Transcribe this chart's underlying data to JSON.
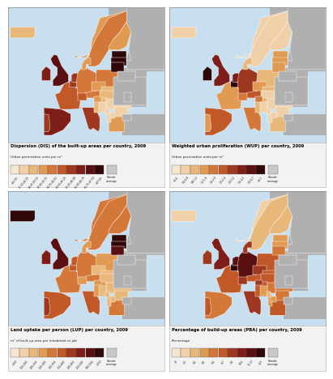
{
  "bg_color": "#ffffff",
  "map_bg": "#c8dff0",
  "land_gray": "#aaaaaa",
  "sea_color": "#c8dff0",
  "outer_bg": "#9ab8cc",
  "panels": [
    {
      "title": "Dispersion (DIS) of the built-up areas per country, 2009",
      "subtitle": "Urban permeation units per m²",
      "legend_labels": [
        "<41.50",
        "41.50-42.25",
        "42.25-43.00",
        "43.00-43.75",
        "43.75-44.50",
        "44.50-45.25",
        "45.25-46.00",
        "46.00-46.75",
        "46.75-47.50",
        ">47.50",
        "Outside\ncoverage"
      ],
      "colors": [
        "#f5e6d0",
        "#f0d0a8",
        "#e8b87a",
        "#e09a52",
        "#d4783a",
        "#c05828",
        "#9e3820",
        "#7d1e18",
        "#5a0f10",
        "#300808",
        "#c8c8c8"
      ],
      "country_colors": {
        "iceland": 2,
        "norway": 3,
        "sweden": 4,
        "finland": 3,
        "uk": 8,
        "ireland": 7,
        "france": 5,
        "spain": 7,
        "portugal": 6,
        "belgium": 6,
        "netherlands": 6,
        "luxembourg": 5,
        "germany": 4,
        "denmark": 3,
        "austria": 4,
        "switzerland": 5,
        "italy": 6,
        "greece": 3,
        "poland": 4,
        "czech": 3,
        "slovakia": 2,
        "hungary": 2,
        "romania": 1,
        "bulgaria": 1,
        "estonia": 9,
        "latvia": 9,
        "lithuania": 9,
        "croatia": 2,
        "slovenia": 3,
        "serbia": 1,
        "albania": 1,
        "northmacedonia": 1,
        "bosniaherzegovina": 1,
        "montenegro": 1,
        "turkey_eu": -1,
        "russia_west": -1,
        "ukraine": -1,
        "belarus": -1,
        "moldova": -1,
        "cyprus": 3,
        "malta": 6
      }
    },
    {
      "title": "Weighted urban proliferation (WUP) per country, 2009",
      "subtitle": "Urban permeation units per m²",
      "legend_labels": [
        "<0.4",
        "0.4-0.8",
        "0.8-1.2",
        "1.2-1.6",
        "1.6-2.0",
        "2.0-2.4",
        "2.4-3.2",
        "3.2-4.3",
        "4.3-6.7",
        ">6.7",
        "Outside\ncoverage"
      ],
      "colors": [
        "#f5e6d0",
        "#f0d0a8",
        "#e8b87a",
        "#e09a52",
        "#d4783a",
        "#c05828",
        "#9e3820",
        "#7d1e18",
        "#5a0f10",
        "#300808",
        "#c8c8c8"
      ],
      "country_colors": {
        "iceland": 1,
        "norway": 1,
        "sweden": 1,
        "finland": 1,
        "uk": 7,
        "ireland": 9,
        "france": 3,
        "spain": 5,
        "portugal": 3,
        "belgium": 9,
        "netherlands": 7,
        "luxembourg": 6,
        "germany": 6,
        "denmark": 2,
        "austria": 5,
        "switzerland": 4,
        "italy": 4,
        "greece": 2,
        "poland": 2,
        "czech": 3,
        "slovakia": 2,
        "hungary": 1,
        "romania": 1,
        "bulgaria": 1,
        "estonia": 3,
        "latvia": 3,
        "lithuania": 3,
        "croatia": 2,
        "slovenia": 4,
        "serbia": 1,
        "albania": 1,
        "northmacedonia": 1,
        "bosniaherzegovina": 1,
        "montenegro": 1,
        "turkey_eu": -1,
        "russia_west": -1,
        "ukraine": -1,
        "belarus": -1,
        "moldova": -1,
        "cyprus": 2,
        "malta": 5
      }
    },
    {
      "title": "Land uptake per person (LUP) per country, 2009",
      "subtitle": "m² of built-up area per inhabitant or job",
      "legend_labels": [
        "<150",
        "150-200",
        "200-250",
        "250-300",
        "300-350",
        "350-400",
        "400-450",
        "450-500",
        "500-550",
        ">550",
        "Outside\ncoverage"
      ],
      "colors": [
        "#f5e6d0",
        "#f0d0a8",
        "#e8b87a",
        "#e09a52",
        "#d4783a",
        "#c05828",
        "#9e3820",
        "#7d1e18",
        "#5a0f10",
        "#300808",
        "#c8c8c8"
      ],
      "country_colors": {
        "iceland": 9,
        "norway": 4,
        "sweden": 4,
        "finland": 4,
        "uk": 8,
        "ireland": 7,
        "france": 4,
        "spain": 5,
        "portugal": 6,
        "belgium": 5,
        "netherlands": 5,
        "luxembourg": 4,
        "germany": 4,
        "denmark": 3,
        "austria": 4,
        "switzerland": 3,
        "italy": 5,
        "greece": 4,
        "poland": 3,
        "czech": 2,
        "slovakia": 2,
        "hungary": 2,
        "romania": 2,
        "bulgaria": 2,
        "estonia": 9,
        "latvia": 9,
        "lithuania": 8,
        "croatia": 3,
        "slovenia": 3,
        "serbia": 2,
        "albania": 2,
        "northmacedonia": 2,
        "bosniaherzegovina": 2,
        "montenegro": 2,
        "turkey_eu": -1,
        "russia_west": -1,
        "ukraine": -1,
        "belarus": -1,
        "moldova": -1,
        "cyprus": 4,
        "malta": 3
      }
    },
    {
      "title": "Percentage of build-up areas (PBA) per country, 2009",
      "subtitle": "Percentage",
      "legend_labels": [
        "<2",
        "2-3",
        "3-4",
        "4-5",
        "5-6",
        "6-7",
        "7-8",
        "8-11",
        "11-17",
        ">17",
        "Outside\ncoverage"
      ],
      "colors": [
        "#f5e6d0",
        "#f0d0a8",
        "#e8b87a",
        "#e09a52",
        "#d4783a",
        "#c05828",
        "#9e3820",
        "#7d1e18",
        "#5a0f10",
        "#300808",
        "#c8c8c8"
      ],
      "country_colors": {
        "iceland": 1,
        "norway": 1,
        "sweden": 2,
        "finland": 2,
        "uk": 7,
        "ireland": 6,
        "france": 5,
        "spain": 4,
        "portugal": 5,
        "belgium": 9,
        "netherlands": 8,
        "luxembourg": 7,
        "germany": 8,
        "denmark": 6,
        "austria": 5,
        "switzerland": 6,
        "italy": 6,
        "greece": 5,
        "poland": 5,
        "czech": 6,
        "slovakia": 5,
        "hungary": 5,
        "romania": 4,
        "bulgaria": 4,
        "estonia": 3,
        "latvia": 3,
        "lithuania": 4,
        "croatia": 5,
        "slovenia": 6,
        "serbia": 4,
        "albania": 3,
        "northmacedonia": 3,
        "bosniaherzegovina": 3,
        "montenegro": 2,
        "turkey_eu": -1,
        "russia_west": -1,
        "ukraine": -1,
        "belarus": -1,
        "moldova": -1,
        "cyprus": 5,
        "malta": 9
      }
    }
  ]
}
